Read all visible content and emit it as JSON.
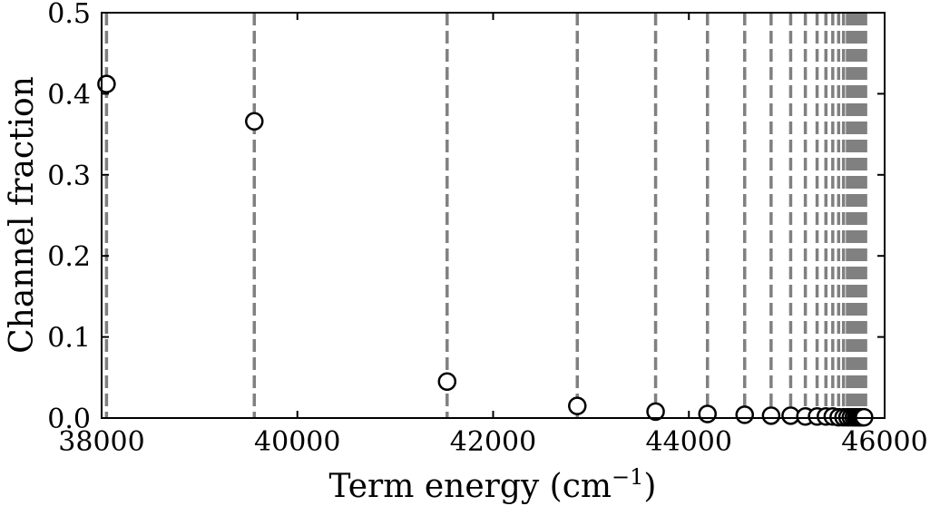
{
  "chart_data": {
    "type": "scatter",
    "title": "",
    "xlabel": "Term energy (cm",
    "xlabel_sup": "−1",
    "xlabel_suffix": ")",
    "ylabel": "Channel fraction",
    "xlim": [
      38000,
      46000
    ],
    "ylim": [
      0,
      0.5
    ],
    "x_ticks": [
      38000,
      40000,
      42000,
      44000,
      46000
    ],
    "x_tick_labels": [
      "38000",
      "40000",
      "42000",
      "44000",
      "46000"
    ],
    "y_ticks": [
      0.0,
      0.1,
      0.2,
      0.3,
      0.4,
      0.5
    ],
    "y_tick_labels": [
      "0.0",
      "0.1",
      "0.2",
      "0.3",
      "0.4",
      "0.5"
    ],
    "grid": false,
    "marker_style": "open-circle",
    "marker_color": "#000000",
    "vline_color": "#808080",
    "vline_style": "dashed",
    "series": [
      {
        "x": [
          38050,
          39560,
          41530,
          42860,
          43660,
          44190,
          44570,
          44840,
          45040,
          45190,
          45310,
          45400,
          45470,
          45530,
          45580,
          45620,
          45655,
          45685,
          45710,
          45730,
          45750,
          45770,
          45790
        ],
        "y": [
          0.412,
          0.366,
          0.045,
          0.015,
          0.008,
          0.005,
          0.004,
          0.003,
          0.003,
          0.002,
          0.002,
          0.002,
          0.002,
          0.001,
          0.001,
          0.001,
          0.001,
          0.001,
          0.001,
          0.001,
          0.001,
          0.001,
          0.001
        ]
      }
    ],
    "vlines": [
      38050,
      39560,
      41530,
      42860,
      43660,
      44190,
      44570,
      44840,
      45040,
      45190,
      45310,
      45400,
      45470,
      45530,
      45580,
      45620,
      45650,
      45675,
      45695,
      45712,
      45727,
      45740,
      45751,
      45761,
      45770,
      45778,
      45785,
      45791,
      45797,
      45802,
      45806
    ]
  }
}
